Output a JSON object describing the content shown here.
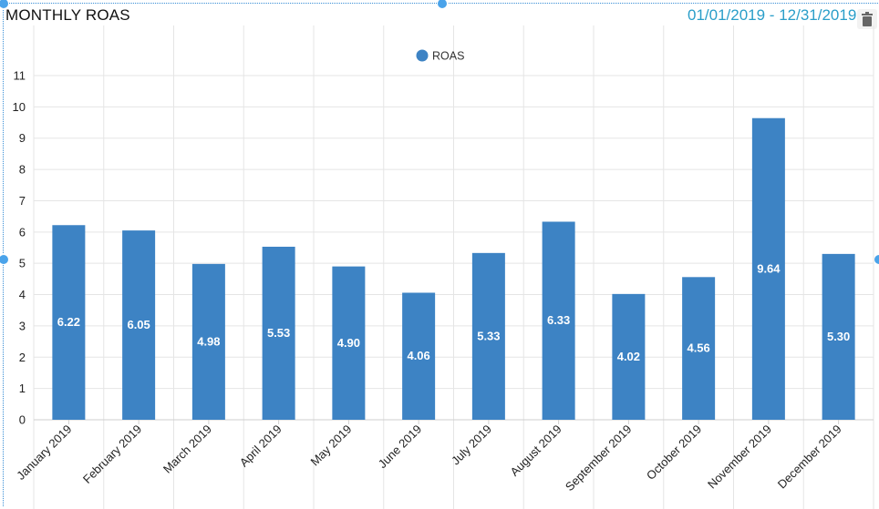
{
  "widget": {
    "title": "MONTHLY ROAS",
    "date_range": "01/01/2019 - 12/31/2019",
    "delete_icon": "trash-icon"
  },
  "colors": {
    "bar": "#3d83c4",
    "grid": "#e5e5e5",
    "date_range": "#2a9ec9",
    "selection_border": "#3a8fd6"
  },
  "chart_data": {
    "type": "bar",
    "title": "MONTHLY ROAS",
    "xlabel": "",
    "ylabel": "",
    "categories": [
      "January 2019",
      "February 2019",
      "March 2019",
      "April 2019",
      "May 2019",
      "June 2019",
      "July 2019",
      "August 2019",
      "September 2019",
      "October 2019",
      "November 2019",
      "December 2019"
    ],
    "series": [
      {
        "name": "ROAS",
        "values": [
          6.22,
          6.05,
          4.98,
          5.53,
          4.9,
          4.06,
          5.33,
          6.33,
          4.02,
          4.56,
          9.64,
          5.3
        ],
        "labels": [
          "6.22",
          "6.05",
          "4.98",
          "5.53",
          "4.90",
          "4.06",
          "5.33",
          "6.33",
          "4.02",
          "4.56",
          "9.64",
          "5.30"
        ]
      }
    ],
    "ylim": [
      0,
      11
    ],
    "yticks": [
      "0",
      "1",
      "2",
      "3",
      "4",
      "5",
      "6",
      "7",
      "8",
      "9",
      "10",
      "11"
    ],
    "grid": true,
    "legend_position": "top-center"
  }
}
